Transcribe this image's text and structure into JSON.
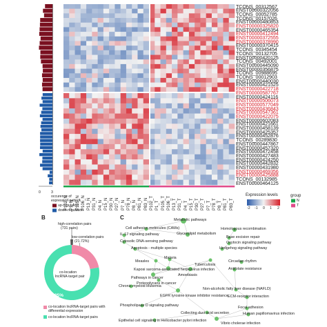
{
  "heatmap": {
    "row_labels": [
      {
        "text": "TCONS_00312567",
        "red": false
      },
      {
        "text": "ENST00000322056",
        "red": false
      },
      {
        "text": "TCONS_00052785",
        "red": false
      },
      {
        "text": "TCONS_00157026",
        "red": false
      },
      {
        "text": "ENST00000480853",
        "red": false
      },
      {
        "text": "ENST00000325820",
        "red": true
      },
      {
        "text": "ENST00000465354",
        "red": false
      },
      {
        "text": "ENST00000412494",
        "red": true
      },
      {
        "text": "ENST00000372555",
        "red": true
      },
      {
        "text": "ENST00000378990",
        "red": true
      },
      {
        "text": "ENST00000370415",
        "red": false
      },
      {
        "text": "TCONS_00345454",
        "red": false
      },
      {
        "text": "TCONS_00132705",
        "red": false
      },
      {
        "text": "ENST00000420125",
        "red": false
      },
      {
        "text": "TCONS_00492001",
        "red": false
      },
      {
        "text": "ENST00000445090",
        "red": false
      },
      {
        "text": "ENST00000356875",
        "red": false
      },
      {
        "text": "TCONS_00988695",
        "red": false
      },
      {
        "text": "TCONS_00012903",
        "red": false
      },
      {
        "text": "ENST00000440030",
        "red": false
      },
      {
        "text": "ENST00000421525",
        "red": false
      },
      {
        "text": "ENST00000422718",
        "red": true
      },
      {
        "text": "ENST00000587767",
        "red": true
      },
      {
        "text": "ENST00000424116",
        "red": false
      },
      {
        "text": "ENST00000506073",
        "red": true
      },
      {
        "text": "ENST00000577049",
        "red": true
      },
      {
        "text": "ENST00000436843",
        "red": true
      },
      {
        "text": "ENST00000547361",
        "red": true
      },
      {
        "text": "ENST00000422075",
        "red": true
      },
      {
        "text": "ENST00000602083",
        "red": false
      },
      {
        "text": "ENST00000421661",
        "red": false
      },
      {
        "text": "ENST00000458139",
        "red": false
      },
      {
        "text": "ENST00000425357",
        "red": false
      },
      {
        "text": "ENST00000452876",
        "red": false
      },
      {
        "text": "TCONS_00289830",
        "red": false
      },
      {
        "text": "ENST00000447867",
        "red": false
      },
      {
        "text": "ENST00000457320",
        "red": false
      },
      {
        "text": "ENST00000472458",
        "red": false
      },
      {
        "text": "ENST00000427483",
        "red": false
      },
      {
        "text": "ENST00000424250",
        "red": false
      },
      {
        "text": "ENST00000442832",
        "red": false
      },
      {
        "text": "ENST00000431980",
        "red": false
      },
      {
        "text": "ENST00000469356",
        "red": true
      },
      {
        "text": "ENST00000425888",
        "red": true
      },
      {
        "text": "TCONS_00132985",
        "red": false
      },
      {
        "text": "ENST00000464125",
        "red": false
      }
    ],
    "col_labels_normal": [
      "P102_N",
      "P1_N",
      "P105_N",
      "P106_N",
      "P13_N",
      "P31_N",
      "P4_N",
      "P15_N",
      "P30_N",
      "P27_N",
      "P7_N",
      "P78_N",
      "P8_N",
      "P81_N",
      "P83_N"
    ],
    "col_labels_tumor": [
      "P102_T",
      "P1_T",
      "P105_T",
      "P106_T",
      "P13_T",
      "P31_T",
      "P4_T",
      "P15_T",
      "P30_T",
      "P27_T",
      "P7_T",
      "P78_T",
      "P8_T",
      "P81_T",
      "P83_T"
    ],
    "side_axis_label_1": "occurence of",
    "side_axis_label_2": "expression pattern",
    "side_ticks": [
      "0",
      "1",
      "2",
      "3"
    ],
    "legend_up": "up-regulation",
    "legend_down": "down-regulation",
    "expression_title": "Expression levels",
    "expression_ticks": [
      "-2",
      "-1",
      "0",
      "1",
      "2"
    ],
    "group_title": "group",
    "group_items": [
      {
        "label": "N",
        "color": "#1aa64a"
      },
      {
        "label": "T",
        "color": "#e24a8a"
      }
    ],
    "colors": {
      "up": "#7a1020",
      "down": "#1f5aa6",
      "high": "#d6202a",
      "low": "#2a5aa8",
      "mid": "#f2f2f2"
    }
  },
  "panel_b": {
    "letter": "B",
    "high_label_1": "high-correlation pairs",
    "high_label_2": "(731 pairs)",
    "low_label_1": "low-correlation pairs",
    "low_label_2": "(21.72%)",
    "center_label_1": "co-location",
    "center_label_2": "lncRNA-target pair",
    "pct_pink": "22.05%",
    "pct_green": "77.95%",
    "legend_1": "co-location lncRNA-target pairs with differential expression",
    "legend_2": "co-location lncRNA-target pairs",
    "colors": {
      "green": "#49e0b0",
      "pink": "#f08aa8",
      "dark": "#555555"
    }
  },
  "chart_data": {
    "type": "pie",
    "categories": [
      "co-location lncRNA-target pairs with differential expression",
      "co-location lncRNA-target pairs"
    ],
    "values": [
      22.05,
      77.95
    ]
  },
  "panel_c": {
    "letter": "C",
    "nodes": [
      {
        "label": "Metabolic pathways"
      },
      {
        "label": "Cell adhesion molecules (CAMs)"
      },
      {
        "label": "Homologous recombination"
      },
      {
        "label": "IL-17 signaling pathway"
      },
      {
        "label": "Glycerolipid metabolism"
      },
      {
        "label": "Base excision repair"
      },
      {
        "label": "Cytosolic DNA-sensing pathway"
      },
      {
        "label": "Oxytocin signaling pathway"
      },
      {
        "label": "Apoptosis - multiple species"
      },
      {
        "label": "Hedgehog signaling pathway"
      },
      {
        "label": "Measles"
      },
      {
        "label": "Malaria"
      },
      {
        "label": "Tuberculosis"
      },
      {
        "label": "Circadian rhythm"
      },
      {
        "label": "Kaposi sarcoma-associated herpesvirus infection"
      },
      {
        "label": "Amoebiasis"
      },
      {
        "label": "Pathways in cancer"
      },
      {
        "label": "Proteoglycans in cancer"
      },
      {
        "label": "Antifolate resistance"
      },
      {
        "label": "Chronic myeloid leukemia"
      },
      {
        "label": "Non-alcoholic fatty liver disease (NAFLD)"
      },
      {
        "label": "EGFR tyrosine kinase inhibitor resistance"
      },
      {
        "label": "ECM-receptor interaction"
      },
      {
        "label": "Phospholipase D signaling pathway"
      },
      {
        "label": "Focal adhesion"
      },
      {
        "label": "Collecting duct acid secretion"
      },
      {
        "label": "Human papillomavirus infection"
      },
      {
        "label": "Epithelial cell signaling in Helicobacter pylori infection"
      },
      {
        "label": "Vibrio cholerae infection"
      }
    ],
    "node_color": "#6cc26c"
  }
}
